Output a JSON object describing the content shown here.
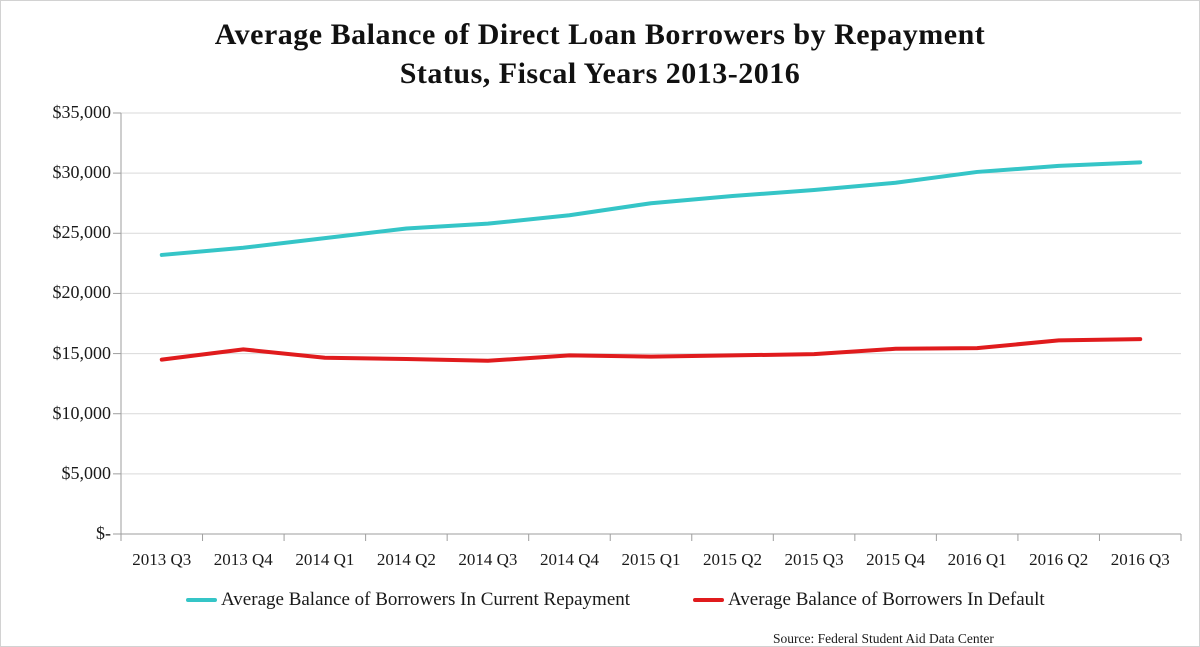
{
  "chart": {
    "title_line1": "Average Balance of Direct Loan Borrowers by Repayment",
    "title_line2": "Status, Fiscal Years 2013-2016",
    "source": "Source: Federal Student Aid Data Center",
    "colors": {
      "current_line": "#35c5c7",
      "default_line": "#e01b1d",
      "gridline": "#d9d9d9",
      "axis": "#9e9e9e",
      "text": "#1a1a1a"
    }
  },
  "chart_data": {
    "type": "line",
    "title": "Average Balance of Direct Loan Borrowers by Repayment Status, Fiscal Years 2013-2016",
    "categories": [
      "2013 Q3",
      "2013 Q4",
      "2014 Q1",
      "2014 Q2",
      "2014 Q3",
      "2014 Q4",
      "2015 Q1",
      "2015 Q2",
      "2015 Q3",
      "2015 Q4",
      "2016 Q1",
      "2016 Q2",
      "2016 Q3"
    ],
    "series": [
      {
        "name": "Average Balance of Borrowers In Current Repayment",
        "color": "#35c5c7",
        "values": [
          23200,
          23800,
          24600,
          25400,
          25800,
          26500,
          27500,
          28100,
          28600,
          29200,
          30100,
          30600,
          30900
        ]
      },
      {
        "name": "Average Balance of Borrowers In Default",
        "color": "#e01b1d",
        "values": [
          14500,
          15350,
          14650,
          14550,
          14400,
          14850,
          14750,
          14850,
          14950,
          15400,
          15450,
          16100,
          16200
        ]
      }
    ],
    "ylim": [
      0,
      35000
    ],
    "y_tick_step": 5000,
    "y_tick_labels": [
      "$-",
      "$5,000",
      "$10,000",
      "$15,000",
      "$20,000",
      "$25,000",
      "$30,000",
      "$35,000"
    ],
    "xlabel": "",
    "ylabel": "",
    "grid": true,
    "legend_position": "bottom",
    "annotations": [
      "Source: Federal Student Aid Data Center"
    ]
  }
}
